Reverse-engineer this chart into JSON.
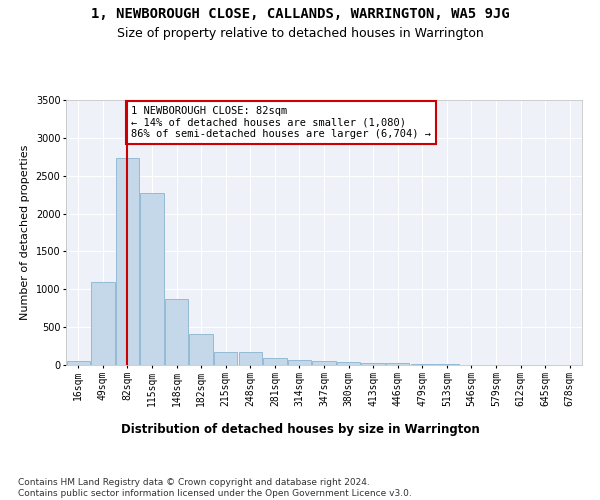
{
  "title": "1, NEWBOROUGH CLOSE, CALLANDS, WARRINGTON, WA5 9JG",
  "subtitle": "Size of property relative to detached houses in Warrington",
  "xlabel": "Distribution of detached houses by size in Warrington",
  "ylabel": "Number of detached properties",
  "categories": [
    "16sqm",
    "49sqm",
    "82sqm",
    "115sqm",
    "148sqm",
    "182sqm",
    "215sqm",
    "248sqm",
    "281sqm",
    "314sqm",
    "347sqm",
    "380sqm",
    "413sqm",
    "446sqm",
    "479sqm",
    "513sqm",
    "546sqm",
    "579sqm",
    "612sqm",
    "645sqm",
    "678sqm"
  ],
  "values": [
    55,
    1100,
    2740,
    2270,
    870,
    415,
    175,
    170,
    95,
    60,
    55,
    40,
    30,
    20,
    10,
    8,
    5,
    5,
    3,
    2,
    2
  ],
  "bar_color": "#c5d8ea",
  "bar_edge_color": "#7aaac8",
  "highlight_x": "82sqm",
  "highlight_line_color": "#cc0000",
  "annotation_text": "1 NEWBOROUGH CLOSE: 82sqm\n← 14% of detached houses are smaller (1,080)\n86% of semi-detached houses are larger (6,704) →",
  "annotation_box_color": "#ffffff",
  "annotation_box_edge_color": "#cc0000",
  "ylim": [
    0,
    3500
  ],
  "yticks": [
    0,
    500,
    1000,
    1500,
    2000,
    2500,
    3000,
    3500
  ],
  "bg_color": "#eef2f8",
  "footer_text": "Contains HM Land Registry data © Crown copyright and database right 2024.\nContains public sector information licensed under the Open Government Licence v3.0.",
  "title_fontsize": 10,
  "subtitle_fontsize": 9,
  "xlabel_fontsize": 8.5,
  "ylabel_fontsize": 8,
  "tick_fontsize": 7,
  "footer_fontsize": 6.5,
  "annotation_fontsize": 7.5
}
